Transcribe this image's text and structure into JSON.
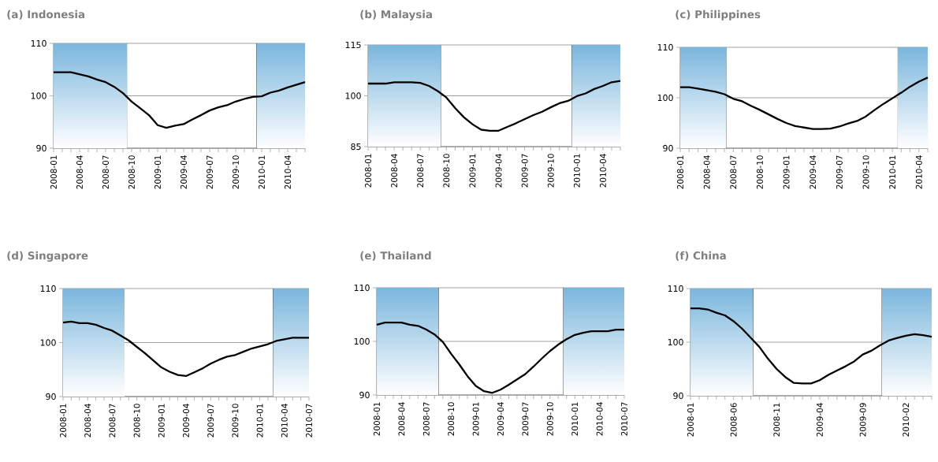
{
  "chart_data": [
    {
      "type": "line",
      "title": "(a) Indonesia",
      "grid": "y",
      "ylim": [
        90,
        110
      ],
      "yticks": [
        90,
        100,
        110
      ],
      "xlim": [
        "2008-01",
        "2010-06"
      ],
      "xticks": [
        "2008-01",
        {
          "value": "2008-02",
          "label": null
        },
        {
          "value": "2008-03",
          "label": null
        },
        "2008-04",
        {
          "value": "2008-05",
          "label": null
        },
        {
          "value": "2008-06",
          "label": null
        },
        "2008-07",
        {
          "value": "2008-08",
          "label": null
        },
        {
          "value": "2008-09",
          "label": null
        },
        "2008-10",
        {
          "value": "2008-11",
          "label": null
        },
        {
          "value": "2008-12",
          "label": null
        },
        "2009-01",
        {
          "value": "2009-02",
          "label": null
        },
        {
          "value": "2009-03",
          "label": null
        },
        "2009-04",
        {
          "value": "2009-05",
          "label": null
        },
        {
          "value": "2009-06",
          "label": null
        },
        "2009-07",
        {
          "value": "2009-08",
          "label": null
        },
        {
          "value": "2009-09",
          "label": null
        },
        "2009-10",
        {
          "value": "2009-11",
          "label": null
        },
        {
          "value": "2009-12",
          "label": null
        },
        "2010-01",
        {
          "value": "2010-02",
          "label": null
        },
        {
          "value": "2010-03",
          "label": null
        },
        "2010-04",
        {
          "value": "2010-05",
          "label": null
        },
        {
          "value": "2010-06",
          "label": null
        }
      ],
      "bands": [
        {
          "axis": "x",
          "from": "2008-01",
          "to": "2008-09-15",
          "color": "#7ab6dd"
        },
        {
          "axis": "x",
          "from": "2009-12-13",
          "to": "2010-06",
          "color": "#7ab6dd"
        }
      ],
      "x": [
        "2008-01",
        "2008-02",
        "2008-03",
        "2008-04",
        "2008-05",
        "2008-06",
        "2008-07",
        "2008-08",
        "2008-09",
        "2008-10",
        "2008-11",
        "2008-12",
        "2009-01",
        "2009-02",
        "2009-03",
        "2009-04",
        "2009-05",
        "2009-06",
        "2009-07",
        "2009-08",
        "2009-09",
        "2009-10",
        "2009-11",
        "2009-12",
        "2010-01",
        "2010-02",
        "2010-03",
        "2010-04",
        "2010-05",
        "2010-06"
      ],
      "series": [
        {
          "color": "#000000",
          "values": [
            104.5,
            104.5,
            104.5,
            104.1,
            103.7,
            103.1,
            102.6,
            101.7,
            100.5,
            98.9,
            97.6,
            96.3,
            94.4,
            93.9,
            94.3,
            94.6,
            95.5,
            96.3,
            97.2,
            97.8,
            98.2,
            98.9,
            99.4,
            99.8,
            99.9,
            100.6,
            101.0,
            101.6,
            102.1,
            102.6
          ]
        }
      ]
    },
    {
      "type": "line",
      "title": "(b) Malaysia",
      "grid": "y",
      "ylim": [
        85,
        115
      ],
      "yticks": [
        85,
        100,
        115
      ],
      "xlim": [
        "2008-01",
        "2010-06"
      ],
      "xticks": [
        "2008-01",
        {
          "value": "2008-02",
          "label": null
        },
        {
          "value": "2008-03",
          "label": null
        },
        "2008-04",
        {
          "value": "2008-05",
          "label": null
        },
        {
          "value": "2008-06",
          "label": null
        },
        "2008-07",
        {
          "value": "2008-08",
          "label": null
        },
        {
          "value": "2008-09",
          "label": null
        },
        "2008-10",
        {
          "value": "2008-11",
          "label": null
        },
        {
          "value": "2008-12",
          "label": null
        },
        "2009-01",
        {
          "value": "2009-02",
          "label": null
        },
        {
          "value": "2009-03",
          "label": null
        },
        "2009-04",
        {
          "value": "2009-05",
          "label": null
        },
        {
          "value": "2009-06",
          "label": null
        },
        "2009-07",
        {
          "value": "2009-08",
          "label": null
        },
        {
          "value": "2009-09",
          "label": null
        },
        "2009-10",
        {
          "value": "2009-11",
          "label": null
        },
        {
          "value": "2009-12",
          "label": null
        },
        "2010-01",
        {
          "value": "2010-02",
          "label": null
        },
        {
          "value": "2010-03",
          "label": null
        },
        "2010-04",
        {
          "value": "2010-05",
          "label": null
        },
        {
          "value": "2010-06",
          "label": null
        }
      ],
      "bands": [
        {
          "axis": "x",
          "from": "2008-01",
          "to": "2008-09-12",
          "color": "#7ab6dd"
        },
        {
          "axis": "x",
          "from": "2009-12-13",
          "to": "2010-06",
          "color": "#7ab6dd"
        }
      ],
      "x": [
        "2008-01",
        "2008-02",
        "2008-03",
        "2008-04",
        "2008-05",
        "2008-06",
        "2008-07",
        "2008-08",
        "2008-09",
        "2008-10",
        "2008-11",
        "2008-12",
        "2009-01",
        "2009-02",
        "2009-03",
        "2009-04",
        "2009-05",
        "2009-06",
        "2009-07",
        "2009-08",
        "2009-09",
        "2009-10",
        "2009-11",
        "2009-12",
        "2010-01",
        "2010-02",
        "2010-03",
        "2010-04",
        "2010-05",
        "2010-06"
      ],
      "series": [
        {
          "color": "#000000",
          "values": [
            103.6,
            103.6,
            103.6,
            104.0,
            104.0,
            104.0,
            103.8,
            102.9,
            101.4,
            99.5,
            96.4,
            93.7,
            91.6,
            90.0,
            89.7,
            89.7,
            90.8,
            91.9,
            93.1,
            94.3,
            95.3,
            96.6,
            97.8,
            98.5,
            99.9,
            100.7,
            102.0,
            102.9,
            104.0,
            104.4
          ]
        }
      ]
    },
    {
      "type": "line",
      "title": "(c) Philippines",
      "grid": "y",
      "ylim": [
        90,
        110
      ],
      "yticks": [
        90,
        100,
        110
      ],
      "xlim": [
        "2008-01",
        "2010-05"
      ],
      "xticks": [
        "2008-01",
        {
          "value": "2008-02",
          "label": null
        },
        {
          "value": "2008-03",
          "label": null
        },
        "2008-04",
        {
          "value": "2008-05",
          "label": null
        },
        {
          "value": "2008-06",
          "label": null
        },
        "2008-07",
        {
          "value": "2008-08",
          "label": null
        },
        {
          "value": "2008-09",
          "label": null
        },
        "2008-10",
        {
          "value": "2008-11",
          "label": null
        },
        {
          "value": "2008-12",
          "label": null
        },
        "2009-01",
        {
          "value": "2009-02",
          "label": null
        },
        {
          "value": "2009-03",
          "label": null
        },
        "2009-04",
        {
          "value": "2009-05",
          "label": null
        },
        {
          "value": "2009-06",
          "label": null
        },
        "2009-07",
        {
          "value": "2009-08",
          "label": null
        },
        {
          "value": "2009-09",
          "label": null
        },
        "2009-10",
        {
          "value": "2009-11",
          "label": null
        },
        {
          "value": "2009-12",
          "label": null
        },
        "2010-01",
        {
          "value": "2010-02",
          "label": null
        },
        {
          "value": "2010-03",
          "label": null
        },
        "2010-04",
        {
          "value": "2010-05",
          "label": null
        }
      ],
      "bands": [
        {
          "axis": "x",
          "from": "2008-01",
          "to": "2008-06-07",
          "color": "#7ab6dd"
        },
        {
          "axis": "x",
          "from": "2010-01-19",
          "to": "2010-05",
          "color": "#7ab6dd"
        }
      ],
      "x": [
        "2008-01",
        "2008-02",
        "2008-03",
        "2008-04",
        "2008-05",
        "2008-06",
        "2008-07",
        "2008-08",
        "2008-09",
        "2008-10",
        "2008-11",
        "2008-12",
        "2009-01",
        "2009-02",
        "2009-03",
        "2009-04",
        "2009-05",
        "2009-06",
        "2009-07",
        "2009-08",
        "2009-09",
        "2009-10",
        "2009-11",
        "2009-12",
        "2010-01",
        "2010-02",
        "2010-03",
        "2010-04",
        "2010-05"
      ],
      "series": [
        {
          "color": "#000000",
          "values": [
            102.1,
            102.1,
            101.8,
            101.5,
            101.2,
            100.7,
            99.8,
            99.3,
            98.4,
            97.6,
            96.7,
            95.8,
            95.0,
            94.4,
            94.1,
            93.8,
            93.8,
            93.9,
            94.3,
            94.9,
            95.4,
            96.3,
            97.6,
            98.8,
            99.9,
            101.0,
            102.2,
            103.2,
            104.0
          ]
        }
      ]
    },
    {
      "type": "line",
      "title": "(d) Singapore",
      "grid": "y",
      "ylim": [
        90,
        110
      ],
      "yticks": [
        90,
        100,
        110
      ],
      "xlim": [
        "2008-01",
        "2010-07"
      ],
      "xticks": [
        "2008-01",
        {
          "value": "2008-02",
          "label": null
        },
        {
          "value": "2008-03",
          "label": null
        },
        "2008-04",
        {
          "value": "2008-05",
          "label": null
        },
        {
          "value": "2008-06",
          "label": null
        },
        "2008-07",
        {
          "value": "2008-08",
          "label": null
        },
        {
          "value": "2008-09",
          "label": null
        },
        "2008-10",
        {
          "value": "2008-11",
          "label": null
        },
        {
          "value": "2008-12",
          "label": null
        },
        "2009-01",
        {
          "value": "2009-02",
          "label": null
        },
        {
          "value": "2009-03",
          "label": null
        },
        "2009-04",
        {
          "value": "2009-05",
          "label": null
        },
        {
          "value": "2009-06",
          "label": null
        },
        "2009-07",
        {
          "value": "2009-08",
          "label": null
        },
        {
          "value": "2009-09",
          "label": null
        },
        "2009-10",
        {
          "value": "2009-11",
          "label": null
        },
        {
          "value": "2009-12",
          "label": null
        },
        "2010-01",
        {
          "value": "2010-02",
          "label": null
        },
        {
          "value": "2010-03",
          "label": null
        },
        "2010-04",
        {
          "value": "2010-05",
          "label": null
        },
        {
          "value": "2010-06",
          "label": null
        },
        "2010-07"
      ],
      "bands": [
        {
          "axis": "x",
          "from": "2008-01",
          "to": "2008-08-16",
          "color": "#7ab6dd"
        },
        {
          "axis": "x",
          "from": "2010-02-19",
          "to": "2010-07",
          "color": "#7ab6dd"
        }
      ],
      "x": [
        "2008-01",
        "2008-02",
        "2008-03",
        "2008-04",
        "2008-05",
        "2008-06",
        "2008-07",
        "2008-08",
        "2008-09",
        "2008-10",
        "2008-11",
        "2008-12",
        "2009-01",
        "2009-02",
        "2009-03",
        "2009-04",
        "2009-05",
        "2009-06",
        "2009-07",
        "2009-08",
        "2009-09",
        "2009-10",
        "2009-11",
        "2009-12",
        "2010-01",
        "2010-02",
        "2010-03",
        "2010-04",
        "2010-05",
        "2010-06",
        "2010-07"
      ],
      "series": [
        {
          "color": "#000000",
          "values": [
            103.7,
            103.9,
            103.6,
            103.6,
            103.3,
            102.7,
            102.2,
            101.3,
            100.4,
            99.2,
            98.0,
            96.7,
            95.4,
            94.6,
            94.0,
            93.8,
            94.5,
            95.2,
            96.1,
            96.8,
            97.4,
            97.7,
            98.3,
            98.9,
            99.3,
            99.7,
            100.3,
            100.6,
            100.9,
            100.9,
            100.9
          ]
        }
      ]
    },
    {
      "type": "line",
      "title": "(e) Thailand",
      "grid": "y",
      "ylim": [
        90,
        110
      ],
      "yticks": [
        90,
        100,
        110
      ],
      "xlim": [
        "2008-01",
        "2010-07"
      ],
      "xticks": [
        "2008-01",
        {
          "value": "2008-02",
          "label": null
        },
        {
          "value": "2008-03",
          "label": null
        },
        "2008-04",
        {
          "value": "2008-05",
          "label": null
        },
        {
          "value": "2008-06",
          "label": null
        },
        "2008-07",
        {
          "value": "2008-08",
          "label": null
        },
        {
          "value": "2008-09",
          "label": null
        },
        "2008-10",
        {
          "value": "2008-11",
          "label": null
        },
        {
          "value": "2008-12",
          "label": null
        },
        "2009-01",
        {
          "value": "2009-02",
          "label": null
        },
        {
          "value": "2009-03",
          "label": null
        },
        "2009-04",
        {
          "value": "2009-05",
          "label": null
        },
        {
          "value": "2009-06",
          "label": null
        },
        "2009-07",
        {
          "value": "2009-08",
          "label": null
        },
        {
          "value": "2009-09",
          "label": null
        },
        "2009-10",
        {
          "value": "2009-11",
          "label": null
        },
        {
          "value": "2009-12",
          "label": null
        },
        "2010-01",
        {
          "value": "2010-02",
          "label": null
        },
        {
          "value": "2010-03",
          "label": null
        },
        "2010-04",
        {
          "value": "2010-05",
          "label": null
        },
        {
          "value": "2010-06",
          "label": null
        },
        "2010-07"
      ],
      "bands": [
        {
          "axis": "x",
          "from": "2008-01",
          "to": "2008-08-16",
          "color": "#7ab6dd"
        },
        {
          "axis": "x",
          "from": "2009-11-19",
          "to": "2010-07",
          "color": "#7ab6dd"
        }
      ],
      "x": [
        "2008-01",
        "2008-02",
        "2008-03",
        "2008-04",
        "2008-05",
        "2008-06",
        "2008-07",
        "2008-08",
        "2008-09",
        "2008-10",
        "2008-11",
        "2008-12",
        "2009-01",
        "2009-02",
        "2009-03",
        "2009-04",
        "2009-05",
        "2009-06",
        "2009-07",
        "2009-08",
        "2009-09",
        "2009-10",
        "2009-11",
        "2009-12",
        "2010-01",
        "2010-02",
        "2010-03",
        "2010-04",
        "2010-05",
        "2010-06",
        "2010-07"
      ],
      "series": [
        {
          "color": "#000000",
          "values": [
            103.1,
            103.5,
            103.5,
            103.5,
            103.1,
            102.9,
            102.2,
            101.3,
            99.9,
            97.7,
            95.7,
            93.5,
            91.7,
            90.7,
            90.4,
            91.0,
            91.9,
            92.9,
            93.9,
            95.3,
            96.8,
            98.2,
            99.4,
            100.4,
            101.2,
            101.6,
            101.9,
            101.9,
            101.9,
            102.2,
            102.2
          ]
        }
      ]
    },
    {
      "type": "line",
      "title": "(f) China",
      "grid": "y",
      "ylim": [
        90,
        110
      ],
      "yticks": [
        90,
        100,
        110
      ],
      "xlim": [
        "2008-01",
        "2010-05"
      ],
      "xticks": [
        "2008-01",
        {
          "value": "2008-02",
          "label": null
        },
        {
          "value": "2008-03",
          "label": null
        },
        {
          "value": "2008-04",
          "label": null
        },
        {
          "value": "2008-05",
          "label": null
        },
        "2008-06",
        {
          "value": "2008-07",
          "label": null
        },
        {
          "value": "2008-08",
          "label": null
        },
        {
          "value": "2008-09",
          "label": null
        },
        {
          "value": "2008-10",
          "label": null
        },
        "2008-11",
        {
          "value": "2008-12",
          "label": null
        },
        {
          "value": "2009-01",
          "label": null
        },
        {
          "value": "2009-02",
          "label": null
        },
        {
          "value": "2009-03",
          "label": null
        },
        "2009-04",
        {
          "value": "2009-05",
          "label": null
        },
        {
          "value": "2009-06",
          "label": null
        },
        {
          "value": "2009-07",
          "label": null
        },
        {
          "value": "2009-08",
          "label": null
        },
        "2009-09",
        {
          "value": "2009-10",
          "label": null
        },
        {
          "value": "2009-11",
          "label": null
        },
        {
          "value": "2009-12",
          "label": null
        },
        {
          "value": "2010-01",
          "label": null
        },
        "2010-02",
        {
          "value": "2010-03",
          "label": null
        },
        {
          "value": "2010-04",
          "label": null
        },
        {
          "value": "2010-05",
          "label": null
        }
      ],
      "bands": [
        {
          "axis": "x",
          "from": "2008-01",
          "to": "2008-08-10",
          "color": "#7ab6dd"
        },
        {
          "axis": "x",
          "from": "2009-11-07",
          "to": "2010-05",
          "color": "#7ab6dd"
        }
      ],
      "x": [
        "2008-01",
        "2008-02",
        "2008-03",
        "2008-04",
        "2008-05",
        "2008-06",
        "2008-07",
        "2008-08",
        "2008-09",
        "2008-10",
        "2008-11",
        "2008-12",
        "2009-01",
        "2009-02",
        "2009-03",
        "2009-04",
        "2009-05",
        "2009-06",
        "2009-07",
        "2009-08",
        "2009-09",
        "2009-10",
        "2009-11",
        "2009-12",
        "2010-01",
        "2010-02",
        "2010-03",
        "2010-04",
        "2010-05"
      ],
      "series": [
        {
          "color": "#000000",
          "values": [
            106.3,
            106.3,
            106.1,
            105.5,
            105.0,
            103.9,
            102.5,
            100.8,
            99.1,
            96.9,
            95.0,
            93.5,
            92.4,
            92.3,
            92.3,
            92.9,
            93.9,
            94.7,
            95.5,
            96.4,
            97.7,
            98.4,
            99.4,
            100.3,
            100.8,
            101.2,
            101.5,
            101.3,
            101.0
          ]
        }
      ]
    }
  ]
}
